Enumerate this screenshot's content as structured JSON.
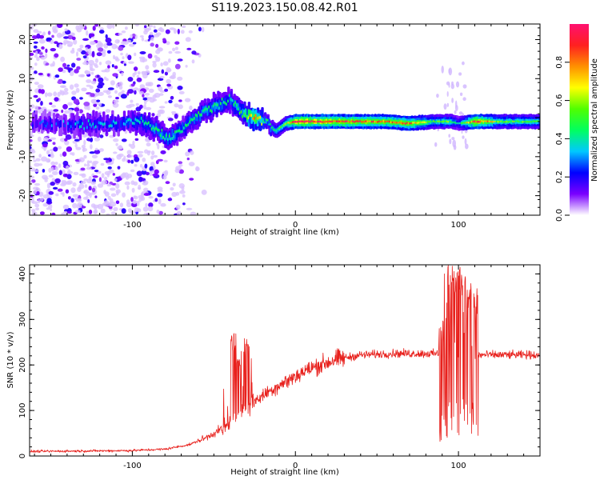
{
  "figure": {
    "title": "S119.2023.150.08.42.R01"
  },
  "chart_data": [
    {
      "type": "heatmap",
      "xlabel": "Height of straight line (km)",
      "ylabel": "Frequency (Hz)",
      "xlim": [
        -163,
        150
      ],
      "ylim": [
        -25,
        24
      ],
      "xticks": [
        -100,
        0,
        100
      ],
      "yticks": [
        -20,
        -10,
        0,
        10,
        20
      ],
      "colorbar": {
        "label": "Normalized spectral amplitude",
        "range": [
          0,
          1
        ],
        "ticks": [
          0.0,
          0.2,
          0.4,
          0.6,
          0.8
        ],
        "colors": [
          "#ffffff",
          "#7a00ff",
          "#0000ff",
          "#00c8ff",
          "#00ff60",
          "#50ff00",
          "#ffff00",
          "#ff9000",
          "#ff2020",
          "#ff1070"
        ]
      },
      "ridge": [
        {
          "x": -160,
          "f": -1.5,
          "a": 0.25
        },
        {
          "x": -130,
          "f": -2.0,
          "a": 0.35
        },
        {
          "x": -110,
          "f": -1.5,
          "a": 0.35
        },
        {
          "x": -95,
          "f": -1.0,
          "a": 0.4
        },
        {
          "x": -85,
          "f": -3.0,
          "a": 0.45
        },
        {
          "x": -78,
          "f": -5.5,
          "a": 0.45
        },
        {
          "x": -70,
          "f": -3.0,
          "a": 0.4
        },
        {
          "x": -60,
          "f": 0.5,
          "a": 0.45
        },
        {
          "x": -50,
          "f": 3.0,
          "a": 0.45
        },
        {
          "x": -40,
          "f": 4.5,
          "a": 0.4
        },
        {
          "x": -32,
          "f": 1.0,
          "a": 0.5
        },
        {
          "x": -25,
          "f": 0.0,
          "a": 0.8
        },
        {
          "x": -18,
          "f": -1.0,
          "a": 0.45
        },
        {
          "x": -12,
          "f": -3.5,
          "a": 0.45
        },
        {
          "x": -6,
          "f": -1.5,
          "a": 0.55
        },
        {
          "x": 0,
          "f": -1.0,
          "a": 0.95
        },
        {
          "x": 30,
          "f": -1.0,
          "a": 0.9
        },
        {
          "x": 55,
          "f": -1.0,
          "a": 0.8
        },
        {
          "x": 70,
          "f": -1.5,
          "a": 0.85
        },
        {
          "x": 85,
          "f": -1.0,
          "a": 0.5
        },
        {
          "x": 95,
          "f": -1.0,
          "a": 0.55
        },
        {
          "x": 100,
          "f": -1.5,
          "a": 0.35
        },
        {
          "x": 110,
          "f": -1.0,
          "a": 0.95
        },
        {
          "x": 125,
          "f": -1.0,
          "a": 0.55
        },
        {
          "x": 150,
          "f": -1.0,
          "a": 0.5
        }
      ]
    },
    {
      "type": "line",
      "xlabel": "Height of straight line (km)",
      "ylabel": "SNR (10 * v/v)",
      "xlim": [
        -163,
        150
      ],
      "ylim": [
        0,
        420
      ],
      "xticks": [
        -100,
        0,
        100
      ],
      "yticks": [
        0,
        100,
        200,
        300,
        400
      ],
      "color": "#e8201c",
      "trend": [
        {
          "x": -163,
          "y": 10
        },
        {
          "x": -100,
          "y": 12
        },
        {
          "x": -80,
          "y": 15
        },
        {
          "x": -65,
          "y": 25
        },
        {
          "x": -55,
          "y": 40
        },
        {
          "x": -45,
          "y": 60
        },
        {
          "x": -35,
          "y": 90
        },
        {
          "x": -25,
          "y": 120
        },
        {
          "x": -15,
          "y": 145
        },
        {
          "x": -5,
          "y": 165
        },
        {
          "x": 5,
          "y": 185
        },
        {
          "x": 15,
          "y": 200
        },
        {
          "x": 25,
          "y": 212
        },
        {
          "x": 40,
          "y": 222
        },
        {
          "x": 60,
          "y": 225
        },
        {
          "x": 80,
          "y": 225
        },
        {
          "x": 110,
          "y": 222
        },
        {
          "x": 150,
          "y": 222
        }
      ],
      "spikes": [
        {
          "x": -38,
          "y": 270
        },
        {
          "x": -30,
          "y": 260
        },
        {
          "x": -35,
          "y": 230
        },
        {
          "x": 90,
          "y": 300
        },
        {
          "x": 95,
          "y": 420
        },
        {
          "x": 98,
          "y": 420
        },
        {
          "x": 101,
          "y": 420
        },
        {
          "x": 103,
          "y": 405
        },
        {
          "x": 107,
          "y": 390
        },
        {
          "x": 110,
          "y": 370
        }
      ]
    }
  ]
}
